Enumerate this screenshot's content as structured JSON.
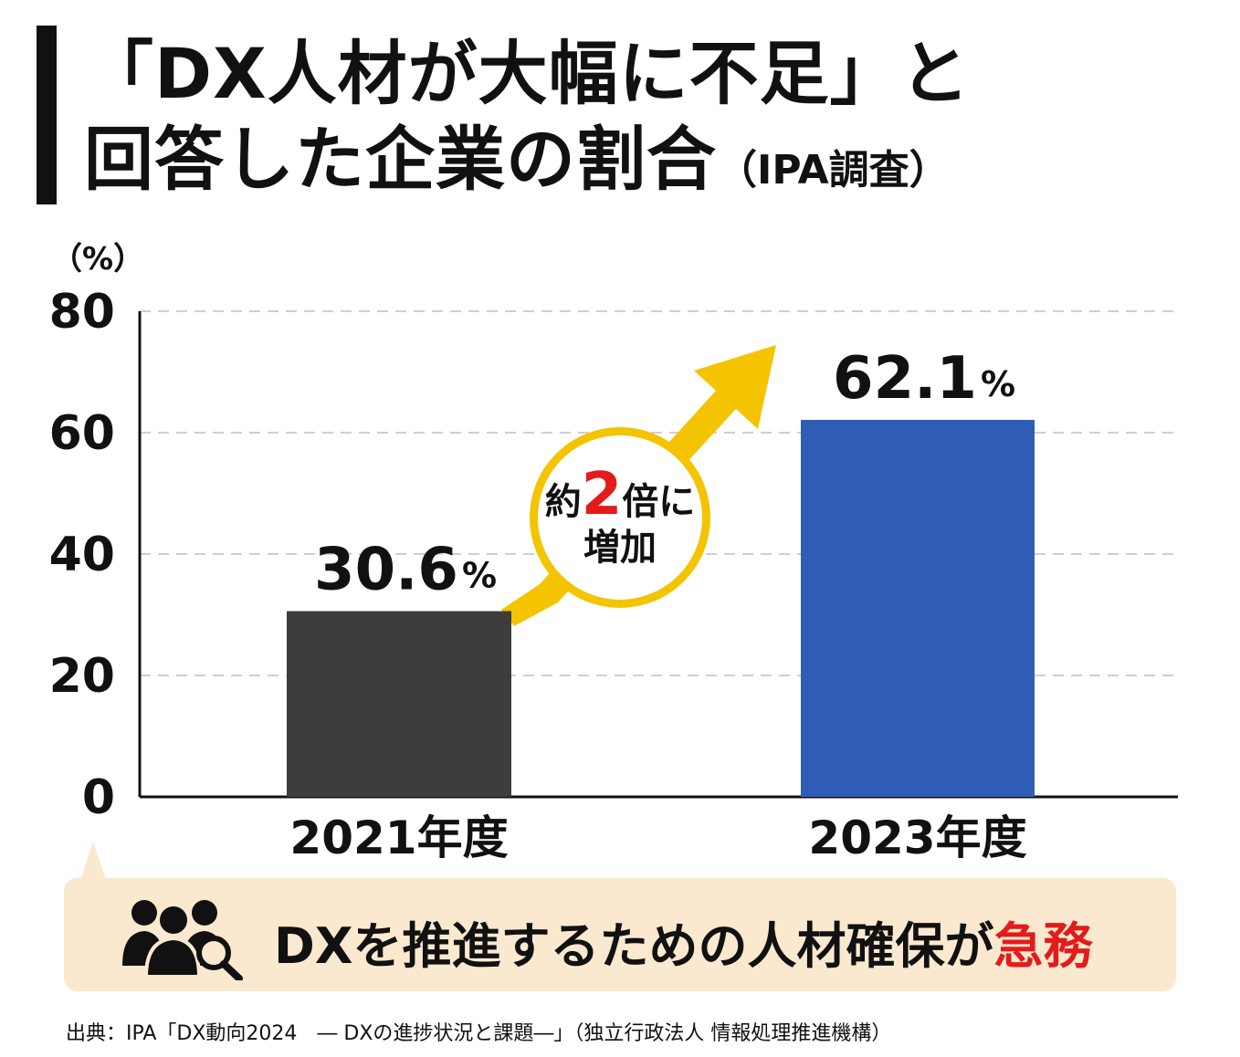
{
  "title": {
    "line1": "「DX人材が大幅に不足」と",
    "line2_main": "回答した企業の割合",
    "line2_sub": "（IPA調査）"
  },
  "chart_data": {
    "type": "bar",
    "categories": [
      "2021年度",
      "2023年度"
    ],
    "values": [
      30.6,
      62.1
    ],
    "value_labels": [
      "30.6",
      "62.1"
    ],
    "value_unit": "%",
    "unit_label": "（%）",
    "ylim": [
      0,
      80
    ],
    "yticks": [
      0,
      20,
      40,
      60,
      80
    ],
    "grid": true,
    "colors": [
      "#3d3d3d",
      "#2f5db6"
    ],
    "annotation": {
      "prefix": "約",
      "emphasis": "2",
      "suffix": "倍に",
      "line2": "増加",
      "arrow_color": "#f4c400",
      "emphasis_color": "#e31b1b"
    }
  },
  "callout": {
    "icon": "people-search-icon",
    "text_main": "DXを推進するための人材確保が",
    "text_accent": "急務",
    "accent_color": "#e31b1b",
    "background": "#fbe9cf"
  },
  "source": "出典：IPA「DX動向2024　― DXの進捗状況と課題―」（独立行政法人 情報処理推進機構）"
}
